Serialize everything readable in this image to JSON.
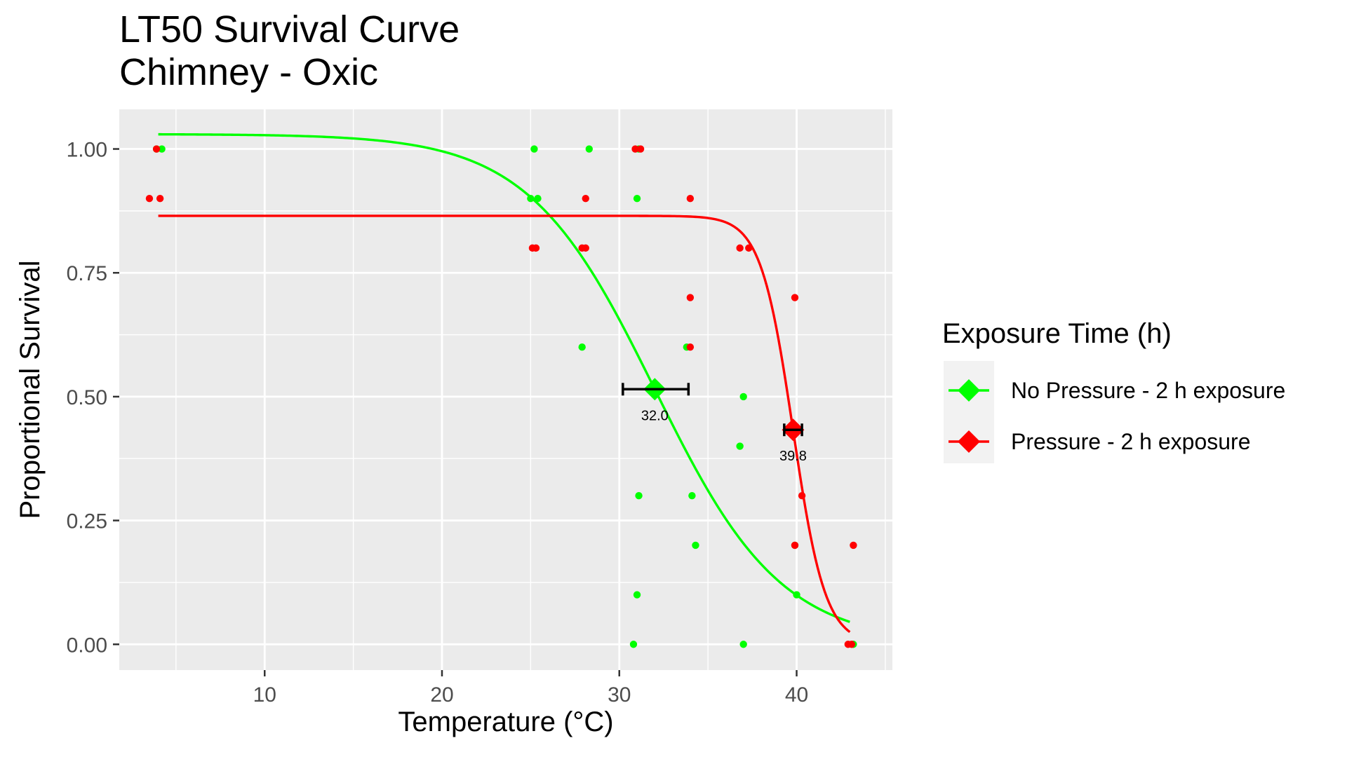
{
  "chart_data": {
    "type": "scatter",
    "title": "LT50 Survival Curve",
    "subtitle": "Chimney - Oxic",
    "xlabel": "Temperature (°C)",
    "ylabel": "Proportional Survival",
    "xlim": [
      1.8,
      45.4
    ],
    "ylim": [
      -0.052,
      1.08
    ],
    "x_ticks": [
      10,
      20,
      30,
      40
    ],
    "x_tick_labels": [
      "10",
      "20",
      "30",
      "40"
    ],
    "y_ticks": [
      0,
      0.25,
      0.5,
      0.75,
      1.0
    ],
    "y_tick_labels": [
      "0.00",
      "0.25",
      "0.50",
      "0.75",
      "1.00"
    ],
    "grid": true,
    "legend": {
      "title": "Exposure Time (h)",
      "placement": "right"
    },
    "series": [
      {
        "name": "No Pressure - 2 h exposure",
        "color": "#00ff00",
        "points": [
          [
            3.9,
            1.0
          ],
          [
            4.2,
            1.0
          ],
          [
            25.2,
            1.0
          ],
          [
            28.3,
            1.0
          ],
          [
            31.1,
            1.0
          ],
          [
            25.0,
            0.9
          ],
          [
            25.4,
            0.9
          ],
          [
            31.0,
            0.9
          ],
          [
            27.9,
            0.6
          ],
          [
            33.8,
            0.6
          ],
          [
            37.0,
            0.5
          ],
          [
            36.8,
            0.4
          ],
          [
            31.1,
            0.3
          ],
          [
            34.1,
            0.3
          ],
          [
            34.3,
            0.2
          ],
          [
            39.9,
            0.2
          ],
          [
            31.0,
            0.1
          ],
          [
            40.0,
            0.1
          ],
          [
            30.8,
            0.0
          ],
          [
            37.0,
            0.0
          ],
          [
            43.2,
            0.0
          ]
        ],
        "curve": {
          "model": "logistic",
          "upper": 1.03,
          "lower": 0.0,
          "lt50": 32.0,
          "slope": 0.28,
          "x_range": [
            4.0,
            43.0
          ]
        },
        "lt50": {
          "x": 32.0,
          "y": 0.515,
          "ci": [
            30.2,
            33.9
          ],
          "label": "32.0"
        }
      },
      {
        "name": "Pressure - 2 h exposure",
        "color": "#ff0000",
        "points": [
          [
            3.9,
            1.0
          ],
          [
            30.9,
            1.0
          ],
          [
            31.2,
            1.0
          ],
          [
            3.5,
            0.9
          ],
          [
            4.1,
            0.9
          ],
          [
            28.1,
            0.9
          ],
          [
            34.0,
            0.9
          ],
          [
            25.1,
            0.8
          ],
          [
            25.3,
            0.8
          ],
          [
            27.9,
            0.8
          ],
          [
            28.1,
            0.8
          ],
          [
            36.8,
            0.8
          ],
          [
            37.3,
            0.8
          ],
          [
            34.0,
            0.7
          ],
          [
            39.9,
            0.7
          ],
          [
            34.0,
            0.6
          ],
          [
            40.3,
            0.3
          ],
          [
            39.9,
            0.2
          ],
          [
            43.2,
            0.2
          ],
          [
            42.9,
            0.0
          ],
          [
            43.1,
            0.0
          ]
        ],
        "curve": {
          "model": "logistic",
          "upper": 0.865,
          "lower": 0.0,
          "lt50": 39.8,
          "slope": 1.1,
          "x_range": [
            4.0,
            43.0
          ]
        },
        "lt50": {
          "x": 39.8,
          "y": 0.433,
          "ci": [
            39.3,
            40.3
          ],
          "label": "39.8"
        }
      }
    ]
  }
}
